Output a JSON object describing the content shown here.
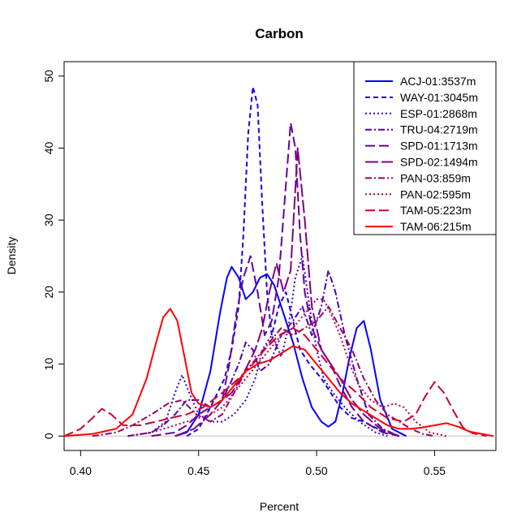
{
  "chart_data": {
    "type": "line",
    "title": "Carbon",
    "xlabel": "Percent",
    "ylabel": "Density",
    "xlim": [
      0.393,
      0.576
    ],
    "ylim": [
      -2,
      52
    ],
    "xticks": [
      0.4,
      0.45,
      0.5,
      0.55
    ],
    "xtick_labels": [
      "0.40",
      "0.45",
      "0.50",
      "0.55"
    ],
    "yticks": [
      0,
      10,
      20,
      30,
      40,
      50
    ],
    "ytick_labels": [
      "0",
      "10",
      "20",
      "30",
      "40",
      "50"
    ],
    "baseline": 0,
    "grid": false,
    "legend_position": "top-right",
    "series": [
      {
        "name": "ACJ-01:3537m",
        "color": "#0000ff",
        "dash": "solid",
        "width": 2,
        "x": [
          0.44,
          0.445,
          0.45,
          0.455,
          0.459,
          0.462,
          0.464,
          0.467,
          0.47,
          0.473,
          0.476,
          0.479,
          0.482,
          0.486,
          0.49,
          0.494,
          0.498,
          0.502,
          0.505,
          0.508,
          0.511,
          0.514,
          0.517,
          0.52,
          0.523,
          0.527,
          0.532,
          0.538
        ],
        "y": [
          0,
          0.5,
          3,
          9,
          17,
          22,
          23.5,
          22,
          19,
          20,
          22,
          22.5,
          21,
          17,
          13,
          8,
          4,
          2,
          1.3,
          2,
          6,
          11,
          15,
          16,
          12,
          5,
          1,
          0
        ]
      },
      {
        "name": "WAY-01:3045m",
        "color": "#1a00e6",
        "dash": "6,4",
        "width": 2,
        "x": [
          0.445,
          0.45,
          0.455,
          0.458,
          0.461,
          0.464,
          0.467,
          0.469,
          0.471,
          0.473,
          0.475,
          0.477,
          0.479,
          0.481,
          0.484,
          0.487,
          0.49,
          0.493,
          0.497,
          0.502,
          0.506,
          0.51,
          0.515,
          0.52,
          0.526,
          0.53,
          0.535
        ],
        "y": [
          0,
          1,
          4,
          6,
          8,
          12,
          18,
          28,
          42,
          48.5,
          46,
          32,
          20,
          14,
          18,
          20,
          16,
          12,
          10,
          8,
          6,
          4,
          2.5,
          2,
          1,
          0.5,
          0
        ]
      },
      {
        "name": "ESP-01:2868m",
        "color": "#3300cc",
        "dash": "2,3",
        "width": 2,
        "x": [
          0.42,
          0.43,
          0.436,
          0.44,
          0.443,
          0.446,
          0.45,
          0.455,
          0.46,
          0.465,
          0.47,
          0.474,
          0.477,
          0.481,
          0.485,
          0.488,
          0.491,
          0.494,
          0.497,
          0.5,
          0.503,
          0.507,
          0.512,
          0.518,
          0.525,
          0.53
        ],
        "y": [
          0,
          0.5,
          2,
          6,
          8.5,
          6,
          3,
          2,
          2,
          3,
          5,
          8,
          12,
          14,
          11,
          15,
          22,
          25,
          18,
          12,
          8,
          6,
          4,
          2,
          0.5,
          0
        ]
      },
      {
        "name": "TRU-04:2719m",
        "color": "#4d00b3",
        "dash": "8,3,2,3",
        "width": 2,
        "x": [
          0.42,
          0.43,
          0.435,
          0.44,
          0.445,
          0.45,
          0.455,
          0.46,
          0.463,
          0.467,
          0.47,
          0.473,
          0.476,
          0.48,
          0.485,
          0.49,
          0.494,
          0.498,
          0.502,
          0.505,
          0.508,
          0.512,
          0.517,
          0.522,
          0.528,
          0.535
        ],
        "y": [
          0,
          0.5,
          1.5,
          3,
          5,
          5,
          4,
          5,
          7,
          10,
          13,
          12,
          9,
          10,
          14,
          16,
          18,
          14,
          18,
          23,
          20,
          14,
          8,
          3,
          1,
          0
        ]
      },
      {
        "name": "SPD-01:1713m",
        "color": "#660099",
        "dash": "12,5",
        "width": 2,
        "x": [
          0.43,
          0.44,
          0.445,
          0.45,
          0.455,
          0.46,
          0.463,
          0.466,
          0.469,
          0.472,
          0.475,
          0.478,
          0.481,
          0.484,
          0.487,
          0.489,
          0.491,
          0.493,
          0.495,
          0.498,
          0.502,
          0.506,
          0.51,
          0.515,
          0.52,
          0.528,
          0.535
        ],
        "y": [
          0,
          0.5,
          1.5,
          3,
          4,
          5,
          10,
          17,
          22,
          25,
          20,
          14,
          16,
          22,
          35,
          43.5,
          40,
          28,
          20,
          15,
          12,
          10,
          7,
          4,
          2,
          0.5,
          0
        ]
      },
      {
        "name": "SPD-02:1494m",
        "color": "#800080",
        "dash": "16,4",
        "width": 2,
        "x": [
          0.44,
          0.448,
          0.455,
          0.46,
          0.464,
          0.468,
          0.471,
          0.474,
          0.477,
          0.48,
          0.483,
          0.486,
          0.489,
          0.492,
          0.495,
          0.498,
          0.502,
          0.506,
          0.51,
          0.515,
          0.52,
          0.527,
          0.535
        ],
        "y": [
          0,
          1,
          3,
          5,
          6,
          8,
          10,
          12,
          15,
          20,
          24,
          20,
          23,
          40,
          30,
          18,
          12,
          10,
          8,
          5,
          3,
          1,
          0
        ]
      },
      {
        "name": "PAN-03:859m",
        "color": "#990066",
        "dash": "8,3,2,3",
        "width": 2,
        "x": [
          0.405,
          0.415,
          0.422,
          0.43,
          0.437,
          0.443,
          0.449,
          0.455,
          0.46,
          0.465,
          0.47,
          0.475,
          0.48,
          0.485,
          0.49,
          0.495,
          0.5,
          0.505,
          0.51,
          0.515,
          0.52,
          0.525,
          0.53,
          0.535,
          0.54,
          0.545,
          0.55
        ],
        "y": [
          0,
          0.5,
          1.5,
          3,
          4.5,
          5,
          3,
          2,
          3,
          6,
          9,
          11,
          13,
          15,
          14,
          15,
          16,
          18,
          15,
          12,
          8,
          5,
          3,
          2,
          1,
          0.3,
          0
        ]
      },
      {
        "name": "PAN-02:595m",
        "color": "#b3004d",
        "dash": "2,3",
        "width": 2,
        "x": [
          0.42,
          0.43,
          0.44,
          0.45,
          0.455,
          0.46,
          0.465,
          0.47,
          0.475,
          0.48,
          0.485,
          0.49,
          0.495,
          0.5,
          0.503,
          0.506,
          0.51,
          0.514,
          0.518,
          0.523,
          0.528,
          0.533,
          0.537,
          0.542,
          0.548,
          0.555
        ],
        "y": [
          0,
          0.5,
          1.5,
          2.5,
          3,
          4,
          6,
          8,
          10,
          12,
          14,
          15,
          17,
          19,
          19,
          17,
          14,
          10,
          7,
          5,
          4,
          4.5,
          4,
          2,
          0.5,
          0
        ]
      },
      {
        "name": "TAM-05:223m",
        "color": "#cc0033",
        "dash": "12,5",
        "width": 2,
        "x": [
          0.393,
          0.4,
          0.405,
          0.409,
          0.413,
          0.418,
          0.425,
          0.432,
          0.438,
          0.445,
          0.452,
          0.46,
          0.467,
          0.473,
          0.478,
          0.484,
          0.49,
          0.495,
          0.5,
          0.505,
          0.51,
          0.517,
          0.523,
          0.53,
          0.537,
          0.542,
          0.546,
          0.55,
          0.554,
          0.558,
          0.562,
          0.566,
          0.572
        ],
        "y": [
          0,
          1,
          2.5,
          3.8,
          3,
          1.5,
          1.5,
          2,
          2.5,
          3,
          4,
          6,
          8,
          10,
          12,
          14,
          15,
          14,
          12,
          10,
          8,
          6,
          4,
          2.5,
          2,
          3,
          5.5,
          7.5,
          6,
          3.5,
          1.2,
          0.4,
          0
        ]
      },
      {
        "name": "TAM-06:215m",
        "color": "#ff0000",
        "dash": "solid",
        "width": 2,
        "x": [
          0.393,
          0.405,
          0.415,
          0.422,
          0.428,
          0.432,
          0.435,
          0.438,
          0.441,
          0.444,
          0.447,
          0.45,
          0.455,
          0.46,
          0.465,
          0.47,
          0.475,
          0.48,
          0.485,
          0.49,
          0.495,
          0.5,
          0.505,
          0.51,
          0.515,
          0.52,
          0.525,
          0.53,
          0.535,
          0.54,
          0.545,
          0.55,
          0.555,
          0.56,
          0.565,
          0.575
        ],
        "y": [
          0,
          0.3,
          1,
          3,
          8,
          13,
          16.5,
          17.7,
          16,
          11,
          6,
          4.5,
          4,
          5,
          7,
          9,
          10,
          10.5,
          11.5,
          12.5,
          12,
          10,
          8,
          6,
          4.5,
          3.5,
          2.5,
          1.5,
          1,
          1,
          1.2,
          1.5,
          1.8,
          1.3,
          0.6,
          0
        ]
      }
    ]
  }
}
